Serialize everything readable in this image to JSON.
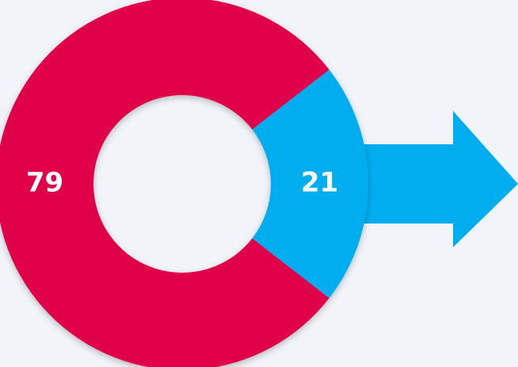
{
  "chart_data": {
    "type": "pie",
    "donut": true,
    "values": [
      79,
      21
    ],
    "colors": [
      "#e0004a",
      "#00aeef"
    ]
  }
}
